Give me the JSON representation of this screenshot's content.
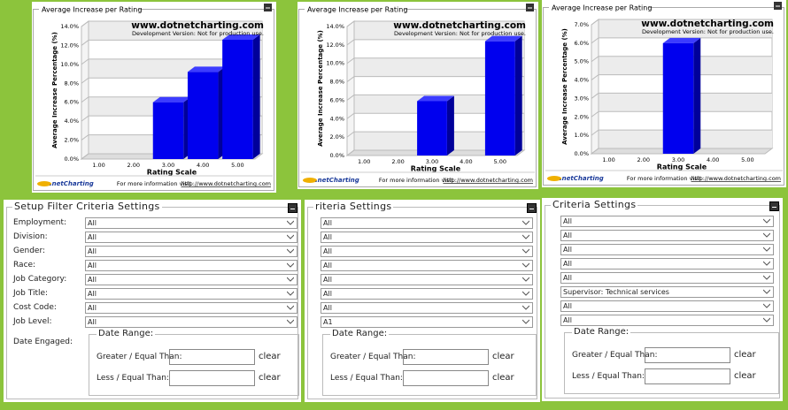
{
  "chart_data": [
    {
      "type": "bar",
      "title": "Average Increase per Rating",
      "watermark": "www.dotnetcharting.com",
      "watermark_note": "Development Version: Not for production use.",
      "ylabel": "Average Increase Percentage (%)",
      "xlabel": "Rating Scale",
      "categories": [
        "1.00",
        "2.00",
        "3.00",
        "4.00",
        "5.00"
      ],
      "values": [
        0,
        0,
        6.0,
        9.2,
        12.6
      ],
      "color": "#0000ee",
      "ylim": [
        0,
        14
      ],
      "yticks": [
        {
          "value": 0,
          "label": "0.0%"
        },
        {
          "value": 2,
          "label": "2.0%"
        },
        {
          "value": 4,
          "label": "4.0%"
        },
        {
          "value": 6,
          "label": "6.0%"
        },
        {
          "value": 8,
          "label": "8.0%"
        },
        {
          "value": 10,
          "label": "10.0%"
        },
        {
          "value": 12,
          "label": "12.0%"
        },
        {
          "value": 14,
          "label": "14.0%"
        }
      ],
      "grid": true,
      "footer_logo": ".netCharting",
      "footer_text": "For more information visit",
      "footer_link": "http://www.dotnetcharting.com"
    },
    {
      "type": "bar",
      "title": "Average Increase per Rating",
      "watermark": "www.dotnetcharting.com",
      "watermark_note": "Development Version: Not for production use.",
      "ylabel": "Average Increase Percentage (%)",
      "xlabel": "Rating Scale",
      "categories": [
        "1.00",
        "2.00",
        "3.00",
        "4.00",
        "5.00"
      ],
      "values": [
        0,
        0,
        5.9,
        0,
        12.4
      ],
      "color": "#0000ee",
      "ylim": [
        0,
        14
      ],
      "yticks": [
        {
          "value": 0,
          "label": "0.0%"
        },
        {
          "value": 2,
          "label": "2.0%"
        },
        {
          "value": 4,
          "label": "4.0%"
        },
        {
          "value": 6,
          "label": "6.0%"
        },
        {
          "value": 8,
          "label": "8.0%"
        },
        {
          "value": 10,
          "label": "10.0%"
        },
        {
          "value": 12,
          "label": "12.0%"
        },
        {
          "value": 14,
          "label": "14.0%"
        }
      ],
      "grid": true,
      "footer_logo": ".netCharting",
      "footer_text": "For more information visit",
      "footer_link": "http://www.dotnetcharting.com"
    },
    {
      "type": "bar",
      "title": "Average Increase per Rating",
      "watermark": "www.dotnetcharting.com",
      "watermark_note": "Development Version: Not for production use.",
      "ylabel": "Average Increase Percentage (%)",
      "xlabel": "Rating Scale",
      "categories": [
        "1.00",
        "2.00",
        "3.00",
        "4.00",
        "5.00"
      ],
      "values": [
        0,
        0,
        6.0,
        0,
        0
      ],
      "color": "#0000ee",
      "ylim": [
        0,
        7
      ],
      "yticks": [
        {
          "value": 0,
          "label": "0.0%"
        },
        {
          "value": 1,
          "label": "1.0%"
        },
        {
          "value": 2,
          "label": "2.0%"
        },
        {
          "value": 3,
          "label": "3.0%"
        },
        {
          "value": 4,
          "label": "4.0%"
        },
        {
          "value": 5,
          "label": "5.0%"
        },
        {
          "value": 6,
          "label": "6.0%"
        },
        {
          "value": 7,
          "label": "7.0%"
        }
      ],
      "grid": true,
      "footer_logo": ".netCharting",
      "footer_text": "For more information visit",
      "footer_link": "http://www.dotnetcharting.com"
    }
  ],
  "forms": [
    {
      "title": "Setup Filter Criteria Settings",
      "fields": [
        {
          "label": "Employment:",
          "value": "All"
        },
        {
          "label": "Division:",
          "value": "All"
        },
        {
          "label": "Gender:",
          "value": "All"
        },
        {
          "label": "Race:",
          "value": "All"
        },
        {
          "label": "Job Category:",
          "value": "All"
        },
        {
          "label": "Job Title:",
          "value": "All"
        },
        {
          "label": "Cost Code:",
          "value": "All"
        },
        {
          "label": "Job Level:",
          "value": "All"
        }
      ],
      "date_label": "Date Engaged:",
      "date_range": {
        "legend": "Date Range:",
        "rows": [
          {
            "label": "Greater / Equal Than:",
            "action": "clear"
          },
          {
            "label": "Less / Equal Than:",
            "action": "clear"
          }
        ]
      }
    },
    {
      "title": "riteria Settings",
      "fields": [
        {
          "value": "All"
        },
        {
          "value": "All"
        },
        {
          "value": "All"
        },
        {
          "value": "All"
        },
        {
          "value": "All"
        },
        {
          "value": "All"
        },
        {
          "value": "All"
        },
        {
          "value": "A1"
        }
      ],
      "date_range": {
        "legend": "Date Range:",
        "rows": [
          {
            "label": "Greater / Equal Than:",
            "action": "clear"
          },
          {
            "label": "Less / Equal Than:",
            "action": "clear"
          }
        ]
      }
    },
    {
      "title": "Criteria Settings",
      "fields": [
        {
          "value": "All"
        },
        {
          "value": "All"
        },
        {
          "value": "All"
        },
        {
          "value": "All"
        },
        {
          "value": "All"
        },
        {
          "value": "Supervisor: Technical services"
        },
        {
          "value": "All"
        },
        {
          "value": "All"
        }
      ],
      "date_range": {
        "legend": "Date Range:",
        "rows": [
          {
            "label": "Greater / Equal Than:",
            "action": "clear"
          },
          {
            "label": "Less / Equal Than:",
            "action": "clear"
          }
        ]
      }
    }
  ]
}
